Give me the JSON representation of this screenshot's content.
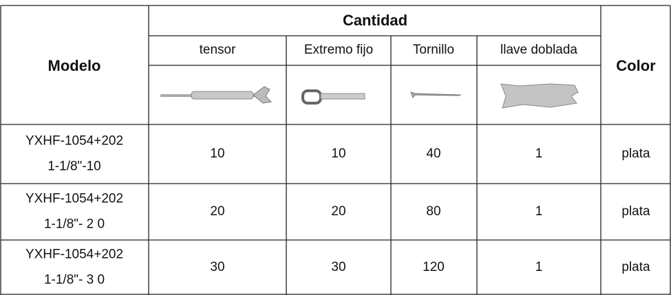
{
  "header": {
    "model": "Modelo",
    "group": "Cantidad",
    "columns": [
      "tensor",
      "Extremo fijo",
      "Tornillo",
      "llave doblada"
    ],
    "color": "Color"
  },
  "rows": [
    {
      "model": [
        "YXHF-1054+202",
        "1-1/8\"-10"
      ],
      "quantities": [
        10,
        10,
        40,
        1
      ],
      "color": "plata"
    },
    {
      "model": [
        "YXHF-1054+202",
        "1-1/8\"- 2 0"
      ],
      "quantities": [
        20,
        20,
        80,
        1
      ],
      "color": "plata"
    },
    {
      "model": [
        "YXHF-1054+202",
        "1-1/8\"- 3 0"
      ],
      "quantities": [
        30,
        30,
        120,
        1
      ],
      "color": "plata"
    }
  ]
}
